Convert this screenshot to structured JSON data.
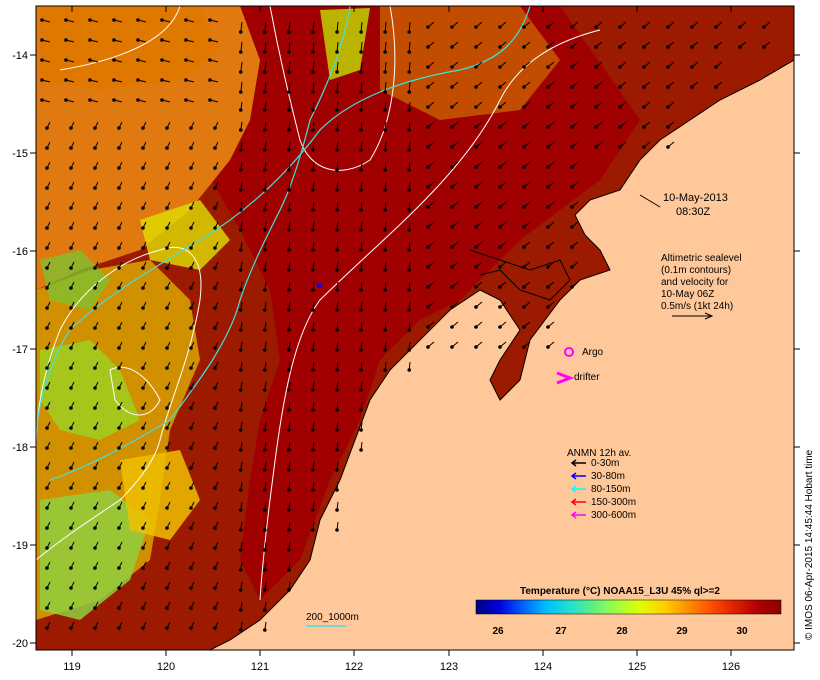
{
  "date_label": "10-May-2013",
  "time_label": "08:30Z",
  "altimetry_note": [
    "Altimetric sealevel",
    "(0.1m contours)",
    "and velocity for",
    "10-May 06Z",
    "0.5m/s (1kt 24h)"
  ],
  "argo_label": "Argo",
  "drifter_label": "drifter",
  "anmn_legend": {
    "title": "ANMN 12h av.",
    "items": [
      {
        "label": "0-30m",
        "color": "#000000"
      },
      {
        "label": "30-80m",
        "color": "#0000ff"
      },
      {
        "label": "80-150m",
        "color": "#00ffff"
      },
      {
        "label": "150-300m",
        "color": "#ff0000"
      },
      {
        "label": "300-600m",
        "color": "#ff00ff"
      }
    ]
  },
  "isobath_label": "200_1000m",
  "colorbar": {
    "title": "Temperature (°C) NOAA15_L3U 45% ql>=2",
    "ticks": [
      "26",
      "27",
      "28",
      "29",
      "30"
    ],
    "colors": [
      "#00007f",
      "#0000e0",
      "#0060ff",
      "#00c0ff",
      "#20e0d0",
      "#60f080",
      "#a0ff40",
      "#e0ff00",
      "#ffd000",
      "#ff9000",
      "#ff5000",
      "#e02000",
      "#b00000",
      "#8b0000"
    ]
  },
  "credit": "© IMOS 06-Apr-2015 14:45:44 Hobart time",
  "map_data": {
    "lon_ticks": [
      "119",
      "120",
      "121",
      "122",
      "123",
      "124",
      "125",
      "126"
    ],
    "lat_ticks": [
      "-14",
      "-15",
      "-16",
      "-17",
      "-18",
      "-19",
      "-20"
    ],
    "land_color": "#ffc89a",
    "ocean_warm_color": "#a80000"
  }
}
